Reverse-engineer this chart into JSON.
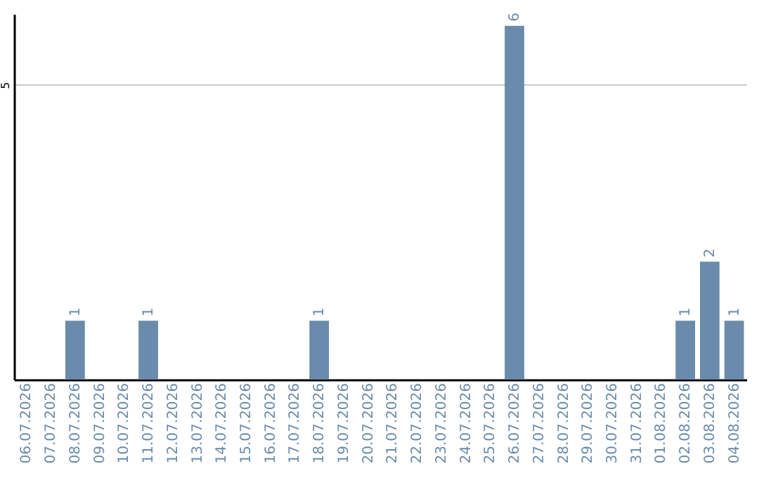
{
  "chart_data": {
    "type": "bar",
    "categories": [
      "06.07.2026",
      "07.07.2026",
      "08.07.2026",
      "09.07.2026",
      "10.07.2026",
      "11.07.2026",
      "12.07.2026",
      "13.07.2026",
      "14.07.2026",
      "15.07.2026",
      "16.07.2026",
      "17.07.2026",
      "18.07.2026",
      "19.07.2026",
      "20.07.2026",
      "21.07.2026",
      "22.07.2026",
      "23.07.2026",
      "24.07.2026",
      "25.07.2026",
      "26.07.2026",
      "27.07.2026",
      "28.07.2026",
      "29.07.2026",
      "30.07.2026",
      "31.07.2026",
      "01.08.2026",
      "02.08.2026",
      "03.08.2026",
      "04.08.2026"
    ],
    "values": [
      0,
      0,
      1,
      0,
      0,
      1,
      0,
      0,
      0,
      0,
      0,
      0,
      1,
      0,
      0,
      0,
      0,
      0,
      0,
      0,
      6,
      0,
      0,
      0,
      0,
      0,
      0,
      1,
      2,
      1
    ],
    "value_labels": [
      null,
      null,
      "1",
      null,
      null,
      "1",
      null,
      null,
      null,
      null,
      null,
      null,
      "1",
      null,
      null,
      null,
      null,
      null,
      null,
      null,
      "6",
      null,
      null,
      null,
      null,
      null,
      null,
      "1",
      "2",
      "1"
    ],
    "color": "#6a8bab",
    "ylim": [
      0,
      6.2
    ],
    "yticks": [
      5
    ],
    "grid": "y"
  }
}
